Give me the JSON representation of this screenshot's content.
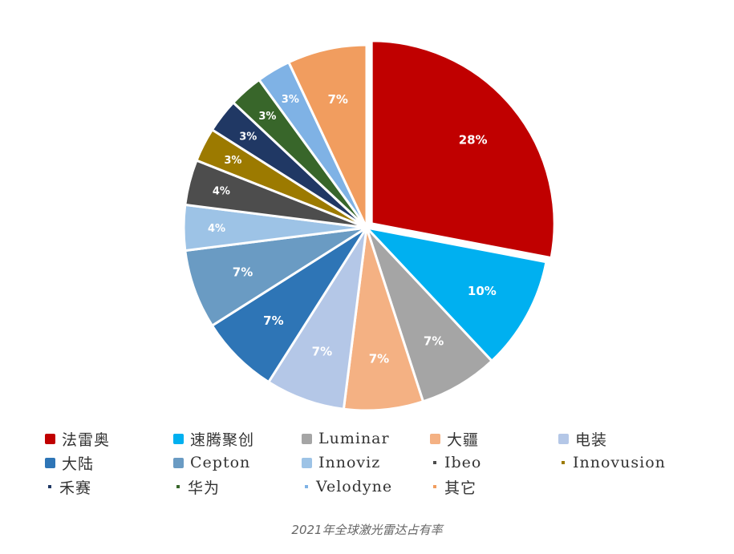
{
  "caption": "2021年全球激光雷达占有率",
  "chart_data": {
    "type": "pie",
    "slices": [
      {
        "name": "法雷奥",
        "value": 28,
        "label": "28%",
        "color": "#c00000"
      },
      {
        "name": "速腾聚创",
        "value": 10,
        "label": "10%",
        "color": "#00b0f0"
      },
      {
        "name": "Luminar",
        "value": 7,
        "label": "7%",
        "color": "#a5a5a5"
      },
      {
        "name": "大疆",
        "value": 7,
        "label": "7%",
        "color": "#f4b183"
      },
      {
        "name": "电装",
        "value": 7,
        "label": "7%",
        "color": "#b4c7e7"
      },
      {
        "name": "大陆",
        "value": 7,
        "label": "7%",
        "color": "#2e75b6"
      },
      {
        "name": "Cepton",
        "value": 7,
        "label": "7%",
        "color": "#6a9bc3"
      },
      {
        "name": "Innoviz",
        "value": 4,
        "label": "4%",
        "color": "#9dc3e6"
      },
      {
        "name": "Ibeo",
        "value": 4,
        "label": "4%",
        "color": "#4d4d4d"
      },
      {
        "name": "Innovusion",
        "value": 3,
        "label": "3%",
        "color": "#9c7a00"
      },
      {
        "name": "禾赛",
        "value": 3,
        "label": "3%",
        "color": "#203864"
      },
      {
        "name": "华为",
        "value": 3,
        "label": "3%",
        "color": "#38662a"
      },
      {
        "name": "Velodyne",
        "value": 3,
        "label": "3%",
        "color": "#7fb2e5"
      },
      {
        "name": "其它",
        "value": 7,
        "label": "7%",
        "color": "#f19d5f"
      }
    ],
    "legend": [
      {
        "name": "法雷奥",
        "color": "#c00000",
        "marker": "square"
      },
      {
        "name": "速腾聚创",
        "color": "#00b0f0",
        "marker": "square"
      },
      {
        "name": "Luminar",
        "color": "#a5a5a5",
        "marker": "square"
      },
      {
        "name": "大疆",
        "color": "#f4b183",
        "marker": "square"
      },
      {
        "name": "电装",
        "color": "#b4c7e7",
        "marker": "square"
      },
      {
        "name": "大陆",
        "color": "#2e75b6",
        "marker": "square"
      },
      {
        "name": "Cepton",
        "color": "#6a9bc3",
        "marker": "square"
      },
      {
        "name": "Innoviz",
        "color": "#9dc3e6",
        "marker": "square"
      },
      {
        "name": "Ibeo",
        "color": "#4d4d4d",
        "marker": "dot"
      },
      {
        "name": "Innovusion",
        "color": "#9c7a00",
        "marker": "dot"
      },
      {
        "name": "禾赛",
        "color": "#203864",
        "marker": "dot"
      },
      {
        "name": "华为",
        "color": "#38662a",
        "marker": "dot"
      },
      {
        "name": "Velodyne",
        "color": "#7fb2e5",
        "marker": "dot"
      },
      {
        "name": "其它",
        "color": "#f19d5f",
        "marker": "dot"
      }
    ],
    "legend_placement": "bottom",
    "start_angle": "12 o'clock",
    "direction": "clockwise"
  }
}
